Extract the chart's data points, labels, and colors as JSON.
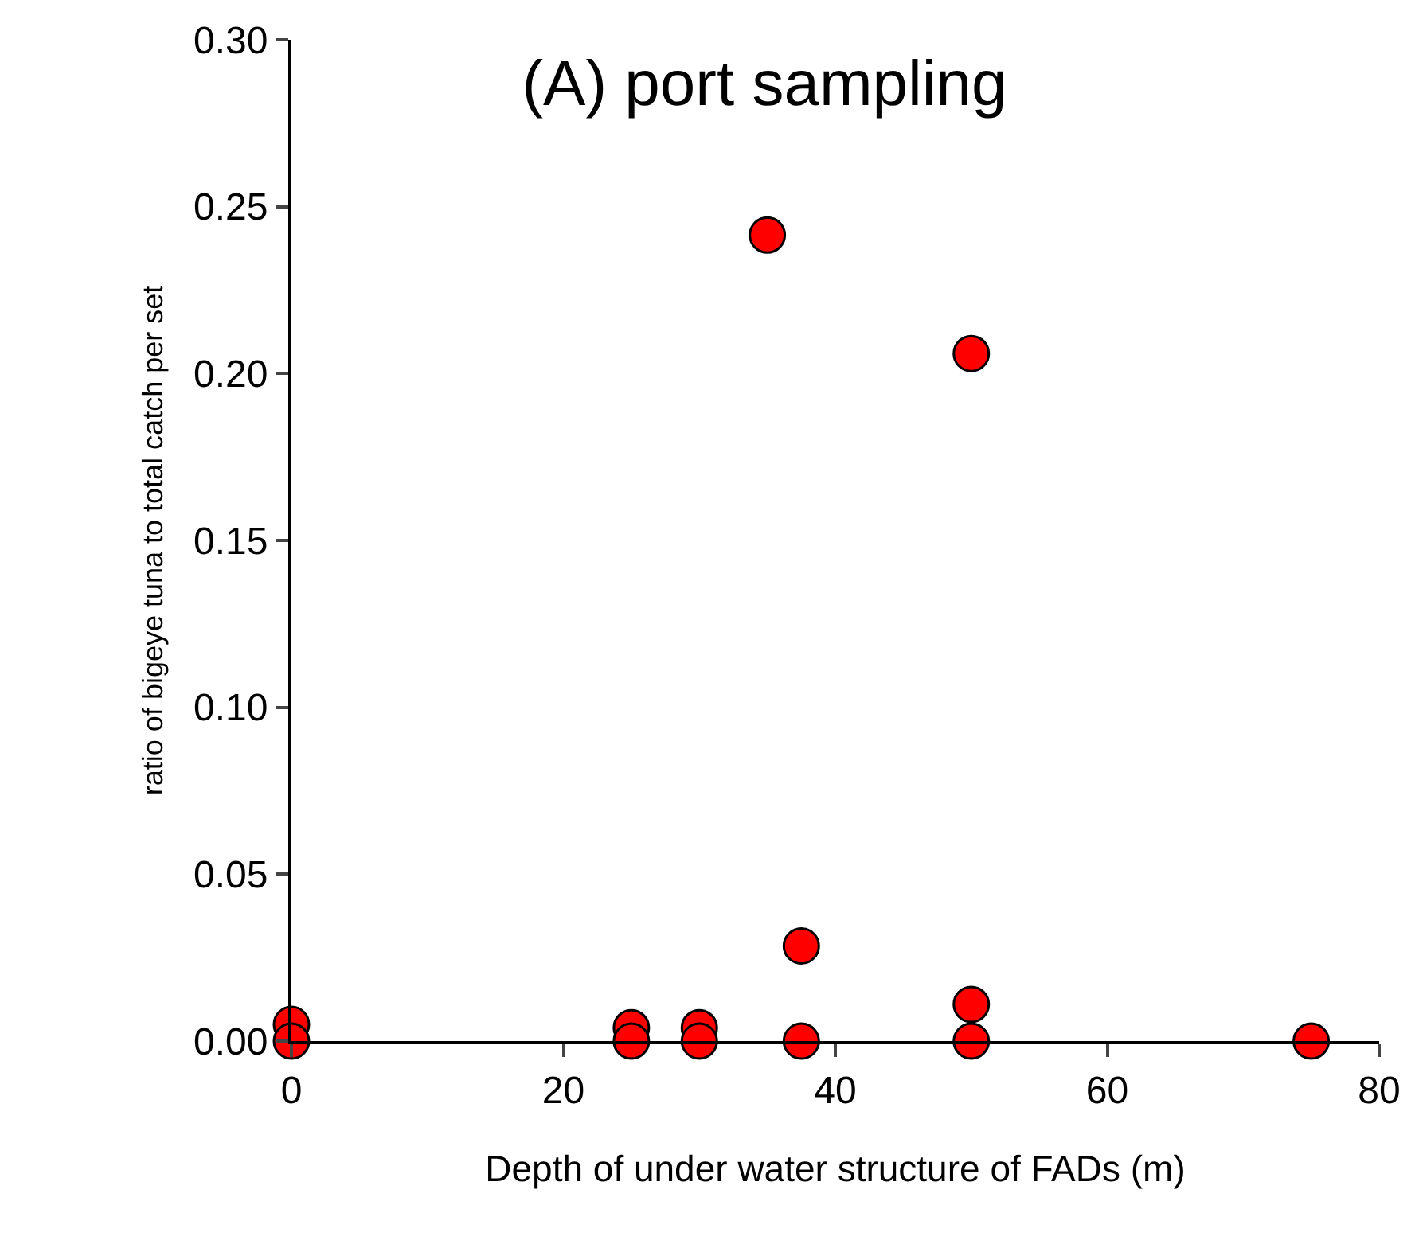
{
  "chart_data": {
    "type": "scatter",
    "title": "(A) port sampling",
    "xlabel": "Depth of under water structure of FADs (m)",
    "ylabel": "ratio of bigeye tuna to total catch per set",
    "x": [
      0,
      0,
      25,
      25,
      30,
      30,
      35,
      37.5,
      37.5,
      50,
      50,
      50,
      75
    ],
    "series": [
      {
        "color": "#ff0000",
        "values": [
          0.005,
          0,
          0.004,
          0,
          0.004,
          0,
          0.2415,
          0.0285,
          0,
          0.206,
          0.011,
          0,
          0
        ]
      }
    ],
    "xlim": [
      0,
      80
    ],
    "xticks": [
      0,
      20,
      40,
      60,
      80
    ],
    "ylim": [
      0,
      0.3
    ],
    "yticks": [
      {
        "value": 0,
        "label": "0.00"
      },
      {
        "value": 0.05,
        "label": "0.05"
      },
      {
        "value": 0.1,
        "label": "0.10"
      },
      {
        "value": 0.15,
        "label": "0.15"
      },
      {
        "value": 0.2,
        "label": "0.20"
      },
      {
        "value": 0.25,
        "label": "0.25"
      },
      {
        "value": 0.3,
        "label": "0.30"
      }
    ],
    "marker": "circle"
  }
}
